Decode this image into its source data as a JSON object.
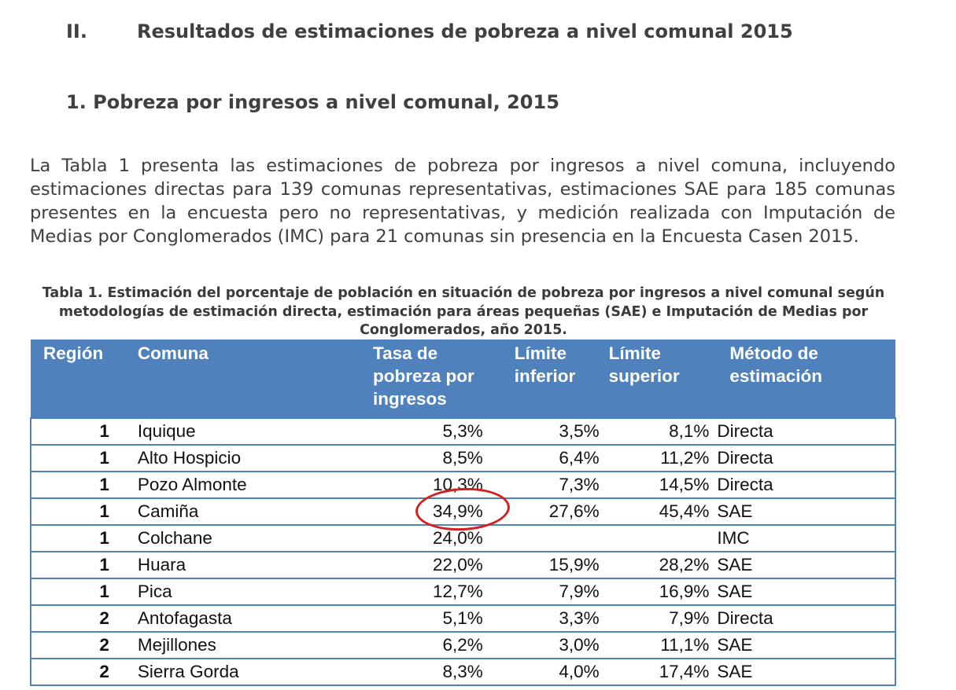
{
  "section": {
    "number": "II.",
    "title": "Resultados de estimaciones de pobreza a nivel comunal 2015"
  },
  "subsection": {
    "title": "1.  Pobreza por ingresos a nivel comunal, 2015"
  },
  "intro": "La Tabla 1 presenta las estimaciones de pobreza por ingresos a nivel comuna, incluyendo estimaciones directas para 139 comunas representativas, estimaciones SAE para 185 comunas presentes en la encuesta pero no representativas, y medición realizada con Imputación de Medias por Conglomerados (IMC) para 21 comunas sin presencia en la Encuesta Casen 2015.",
  "table": {
    "caption": "Tabla 1. Estimación del porcentaje de población en situación de pobreza por ingresos a nivel comunal según metodologías de estimación directa, estimación para áreas pequeñas (SAE) e Imputación de Medias por Conglomerados, año 2015.",
    "header_color": "#4f81bd",
    "columns": [
      "Región",
      "Comuna",
      "Tasa de pobreza por ingresos",
      "Límite inferior",
      "Límite superior",
      "Método de estimación"
    ],
    "rows": [
      {
        "region": "1",
        "comuna": "Iquique",
        "tasa": "5,3%",
        "inferior": "3,5%",
        "superior": "8,1%",
        "metodo": "Directa"
      },
      {
        "region": "1",
        "comuna": "Alto Hospicio",
        "tasa": "8,5%",
        "inferior": "6,4%",
        "superior": "11,2%",
        "metodo": "Directa"
      },
      {
        "region": "1",
        "comuna": "Pozo Almonte",
        "tasa": "10,3%",
        "inferior": "7,3%",
        "superior": "14,5%",
        "metodo": "Directa"
      },
      {
        "region": "1",
        "comuna": "Camiña",
        "tasa": "34,9%",
        "inferior": "27,6%",
        "superior": "45,4%",
        "metodo": "SAE"
      },
      {
        "region": "1",
        "comuna": "Colchane",
        "tasa": "24,0%",
        "inferior": "",
        "superior": "",
        "metodo": "IMC"
      },
      {
        "region": "1",
        "comuna": "Huara",
        "tasa": "22,0%",
        "inferior": "15,9%",
        "superior": "28,2%",
        "metodo": "SAE"
      },
      {
        "region": "1",
        "comuna": "Pica",
        "tasa": "12,7%",
        "inferior": "7,9%",
        "superior": "16,9%",
        "metodo": "SAE"
      },
      {
        "region": "2",
        "comuna": "Antofagasta",
        "tasa": "5,1%",
        "inferior": "3,3%",
        "superior": "7,9%",
        "metodo": "Directa"
      },
      {
        "region": "2",
        "comuna": "Mejillones",
        "tasa": "6,2%",
        "inferior": "3,0%",
        "superior": "11,1%",
        "metodo": "SAE"
      },
      {
        "region": "2",
        "comuna": "Sierra Gorda",
        "tasa": "8,3%",
        "inferior": "4,0%",
        "superior": "17,4%",
        "metodo": "SAE"
      }
    ]
  },
  "annotation": {
    "color": "#d42020",
    "highlighted_value": "34,9%"
  }
}
